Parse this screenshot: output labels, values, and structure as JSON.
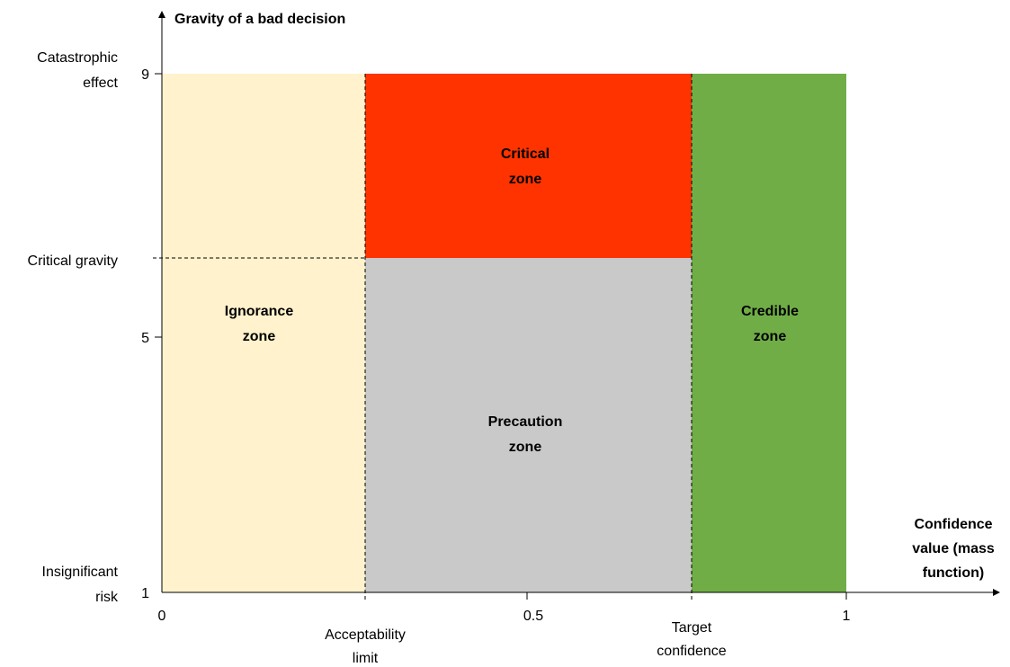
{
  "y_axis": {
    "title": "Gravity of a bad decision",
    "labels": [
      {
        "tick": "9",
        "text": [
          "Catastrophic",
          "effect"
        ]
      },
      {
        "tick": null,
        "text": [
          "Critical gravity"
        ]
      },
      {
        "tick": "5",
        "text": []
      },
      {
        "tick": "1",
        "text": [
          "Insignificant",
          "risk"
        ]
      }
    ]
  },
  "x_axis": {
    "title": [
      "Confidence",
      "value (mass",
      "function)"
    ],
    "labels": [
      {
        "tick": "0",
        "text": []
      },
      {
        "tick": null,
        "text": [
          "Acceptability",
          "limit"
        ]
      },
      {
        "tick": "0.5",
        "text": []
      },
      {
        "tick": null,
        "text": [
          "Target",
          "confidence"
        ]
      },
      {
        "tick": "1",
        "text": []
      }
    ]
  },
  "zones": [
    {
      "label": [
        "Ignorance",
        "zone"
      ]
    },
    {
      "label": [
        "Critical",
        "zone"
      ]
    },
    {
      "label": [
        "Precaution",
        "zone"
      ]
    },
    {
      "label": [
        "Credible",
        "zone"
      ]
    }
  ]
}
